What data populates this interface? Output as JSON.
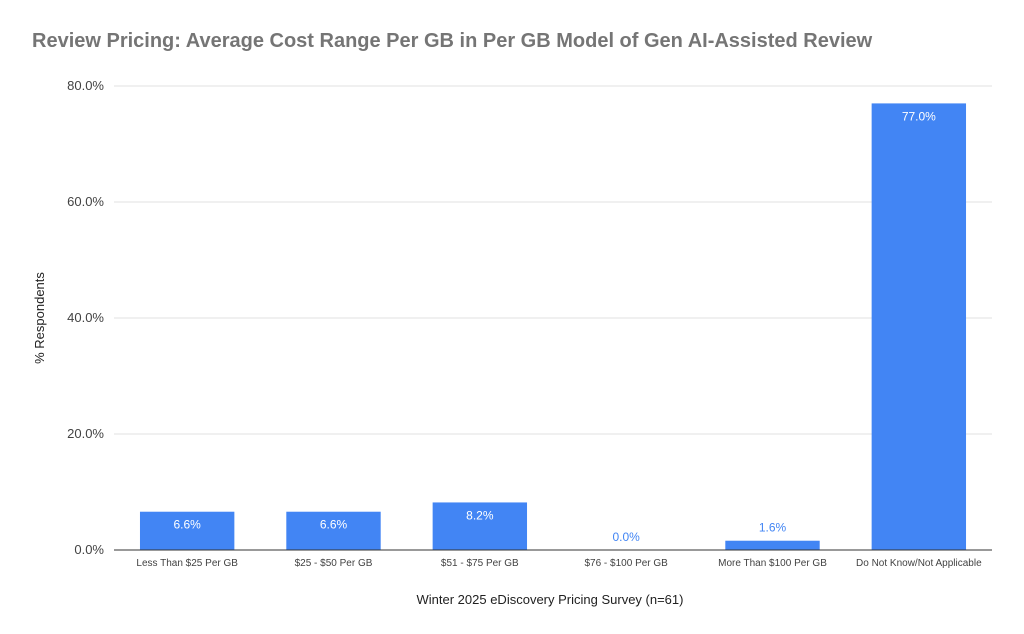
{
  "chart_data": {
    "type": "bar",
    "title": "Review Pricing: Average Cost Range Per GB in Per GB Model of Gen AI-Assisted Review",
    "xlabel": "Winter 2025 eDiscovery Pricing Survey (n=61)",
    "ylabel": "% Respondents",
    "categories": [
      "Less Than $25 Per GB",
      "$25 - $50 Per GB",
      "$51 - $75 Per GB",
      "$76 - $100 Per GB",
      "More Than $100 Per GB",
      "Do Not Know/Not Applicable"
    ],
    "values": [
      6.6,
      6.6,
      8.2,
      0.0,
      1.6,
      77.0
    ],
    "data_labels": [
      "6.6%",
      "6.6%",
      "8.2%",
      "0.0%",
      "1.6%",
      "77.0%"
    ],
    "ylim": [
      0,
      80
    ],
    "yticks": [
      0,
      20,
      40,
      60,
      80
    ],
    "ytick_labels": [
      "0.0%",
      "20.0%",
      "40.0%",
      "60.0%",
      "80.0%"
    ],
    "grid": true,
    "bar_color": "#4285f4",
    "legend": "none"
  }
}
